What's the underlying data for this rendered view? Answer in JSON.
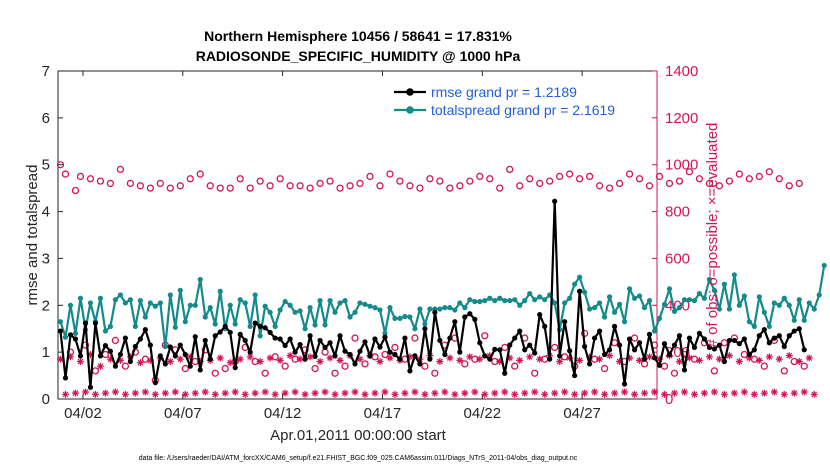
{
  "chart_data": {
    "type": "line",
    "title_line1": "Northern Hemisphere 10456 / 58641 = 17.831%",
    "title_line2": "RADIOSONDE_SPECIFIC_HUMIDITY @ 1000 hPa",
    "xlabel": "Apr.01,2011 00:00:00 start",
    "ylabel_left": "rmse and totalspread",
    "ylabel_right": "# of obs: o=possible; ×=evaluated",
    "footnote": "data file: /Users/raeder/DAI/ATM_forcXX/CAM6_setup/f.e21.FHIST_BGC.f09_025.CAM6assim.011/Diags_NTrS_2011-04/obs_diag_output.nc",
    "xlim": [
      0,
      30
    ],
    "ylim_left": [
      0,
      7
    ],
    "ylim_right": [
      0,
      1400
    ],
    "left_ticks": [
      "0",
      "1",
      "2",
      "3",
      "4",
      "5",
      "6",
      "7"
    ],
    "right_ticks": [
      "0",
      "200",
      "400",
      "600",
      "800",
      "1000",
      "1200",
      "1400"
    ],
    "x_ticks": [
      {
        "x": 1.25,
        "label": "04/02"
      },
      {
        "x": 6.25,
        "label": "04/07"
      },
      {
        "x": 11.25,
        "label": "04/12"
      },
      {
        "x": 16.25,
        "label": "04/17"
      },
      {
        "x": 21.25,
        "label": "04/22"
      },
      {
        "x": 26.25,
        "label": "04/27"
      }
    ],
    "legend": [
      {
        "name": "rmse",
        "label": "rmse grand pr = 1.2189",
        "color": "#000000"
      },
      {
        "name": "totalspread",
        "label": "totalspread grand pr = 2.1619",
        "color": "#148a8a"
      }
    ],
    "colors": {
      "rmse": "#000000",
      "spread": "#148a8a",
      "obs": "#d4145a",
      "legend_text": "#1f5fd6"
    },
    "x_start": 0.125,
    "x_step": 0.25,
    "series": [
      {
        "name": "rmse",
        "axis": "left",
        "values": [
          1.45,
          0.45,
          1.37,
          1.28,
          0.92,
          1.62,
          0.25,
          1.62,
          0.92,
          1.14,
          1.02,
          0.7,
          0.95,
          1.3,
          0.8,
          1.12,
          1.28,
          1.48,
          1.15,
          0.35,
          0.92,
          0.75,
          1.11,
          0.92,
          1.15,
          0.95,
          0.7,
          1.33,
          0.62,
          1.25,
          0.85,
          1.35,
          1.43,
          1.55,
          1.42,
          0.67,
          1.38,
          1.25,
          1.0,
          1.62,
          1.55,
          1.52,
          1.42,
          1.3,
          1.28,
          1.14,
          1.28,
          1.0,
          1.16,
          0.85,
          1.35,
          0.91,
          1.25,
          1.1,
          1.2,
          0.92,
          1.35,
          1.02,
          0.95,
          0.75,
          1.02,
          1.22,
          0.92,
          1.28,
          1.11,
          1.32,
          1.0,
          0.95,
          0.85,
          1.3,
          0.6,
          0.92,
          0.75,
          1.5,
          0.85,
          1.85,
          1.25,
          0.95,
          1.3,
          1.65,
          1.0,
          1.75,
          1.82,
          1.7,
          1.2,
          0.92,
          0.85,
          1.06,
          1.05,
          0.55,
          1.15,
          1.3,
          1.45,
          1.05,
          1.15,
          0.98,
          1.8,
          1.55,
          0.85,
          4.22,
          0.92,
          1.65,
          1.03,
          0.5,
          2.3,
          1.12,
          0.75,
          1.3,
          1.45,
          0.95,
          1.05,
          1.55,
          1.15,
          0.32,
          1.28,
          1.05,
          1.2,
          0.85,
          1.38,
          0.88,
          0.72,
          1.18,
          0.95,
          1.15,
          1.35,
          0.62,
          1.3,
          1.1,
          1.4,
          1.28,
          1.1,
          1.07,
          1.15,
          0.8,
          1.25,
          1.25,
          1.18,
          1.28,
          0.95,
          1.05,
          1.35,
          1.48,
          1.2,
          1.3,
          1.35,
          1.12,
          1.35,
          1.45,
          1.5,
          1.05
        ]
      },
      {
        "name": "totalspread",
        "axis": "left",
        "values": [
          1.65,
          1.32,
          2.0,
          1.4,
          2.15,
          1.48,
          2.05,
          1.65,
          2.15,
          1.45,
          1.55,
          2.12,
          2.22,
          2.05,
          2.12,
          1.55,
          2.1,
          1.75,
          2.05,
          1.98,
          2.05,
          1.12,
          2.22,
          1.53,
          2.32,
          1.65,
          2.0,
          2.0,
          2.55,
          1.75,
          1.95,
          1.6,
          2.3,
          1.5,
          2.0,
          1.6,
          2.12,
          2.05,
          1.55,
          2.22,
          1.35,
          1.98,
          1.85,
          1.55,
          1.9,
          2.08,
          2.0,
          1.85,
          1.88,
          1.5,
          1.95,
          1.58,
          2.1,
          1.58,
          2.1,
          1.85,
          2.05,
          2.1,
          1.75,
          1.85,
          2.05,
          2.02,
          1.98,
          1.95,
          1.9,
          1.4,
          1.95,
          1.72,
          1.72,
          1.76,
          1.75,
          1.5,
          1.92,
          1.6,
          1.92,
          1.92,
          1.92,
          1.95,
          1.95,
          1.9,
          2.05,
          1.95,
          2.12,
          2.08,
          2.08,
          2.1,
          2.15,
          2.1,
          2.15,
          2.1,
          2.1,
          2.12,
          2.0,
          2.1,
          2.25,
          2.12,
          2.18,
          2.12,
          2.22,
          2.05,
          1.48,
          2.05,
          2.15,
          2.45,
          2.6,
          2.28,
          1.92,
          1.95,
          2.05,
          1.75,
          2.18,
          1.85,
          2.02,
          1.65,
          2.35,
          2.15,
          2.2,
          1.95,
          2.1,
          1.45,
          1.72,
          2.02,
          2.35,
          1.87,
          1.95,
          2.12,
          2.12,
          2.1,
          2.25,
          2.15,
          2.55,
          2.32,
          1.92,
          2.45,
          1.92,
          2.65,
          2.0,
          2.2,
          1.65,
          1.55,
          2.18,
          1.85,
          1.55,
          2.05,
          2.0,
          2.15,
          2.0,
          1.68,
          2.12,
          1.68,
          2.05,
          1.92,
          2.22,
          2.85
        ]
      },
      {
        "name": "obs_possible",
        "axis": "right",
        "values": [
          1000,
          960,
          200,
          890,
          950,
          230,
          940,
          120,
          930,
          190,
          920,
          250,
          980,
          140,
          920,
          200,
          910,
          170,
          900,
          80,
          920,
          230,
          900,
          210,
          910,
          130,
          940,
          160,
          960,
          210,
          910,
          110,
          900,
          130,
          900,
          160,
          940,
          220,
          900,
          160,
          930,
          110,
          910,
          180,
          940,
          140,
          910,
          170,
          910,
          210,
          900,
          130,
          920,
          200,
          930,
          110,
          900,
          140,
          910,
          260,
          920,
          150,
          950,
          180,
          910,
          190,
          960,
          220,
          930,
          170,
          910,
          260,
          900,
          140,
          940,
          110,
          930,
          230,
          900,
          260,
          910,
          150,
          930,
          170,
          950,
          270,
          940,
          160,
          900,
          220,
          980,
          140,
          910,
          260,
          940,
          110,
          920,
          170,
          930,
          220,
          950,
          180,
          960,
          140,
          940,
          280,
          950,
          170,
          910,
          130,
          900,
          240,
          920,
          160,
          960,
          260,
          940,
          150,
          910,
          230,
          950,
          140,
          920,
          110,
          930,
          190,
          970,
          170,
          940,
          240,
          920,
          120,
          910,
          240,
          930,
          260,
          960,
          190,
          940,
          170,
          950,
          140,
          970,
          250,
          940,
          120,
          910,
          160,
          920,
          140
        ]
      },
      {
        "name": "obs_evaluated",
        "axis": "right",
        "values": [
          170,
          20,
          180,
          25,
          160,
          30,
          190,
          20,
          140,
          25,
          170,
          30,
          165,
          20,
          180,
          25,
          155,
          30,
          165,
          20,
          175,
          25,
          160,
          30,
          170,
          20,
          180,
          25,
          160,
          30,
          165,
          20,
          175,
          25,
          155,
          30,
          170,
          20,
          180,
          25,
          160,
          30,
          175,
          20,
          165,
          25,
          185,
          30,
          170,
          20,
          180,
          25,
          160,
          30,
          175,
          20,
          165,
          25,
          185,
          30,
          170,
          20,
          185,
          25,
          160,
          30,
          175,
          20,
          165,
          25,
          180,
          30,
          170,
          20,
          185,
          25,
          160,
          30,
          175,
          20,
          165,
          25,
          180,
          30,
          170,
          20,
          185,
          25,
          160,
          30,
          175,
          20,
          165,
          25,
          180,
          30,
          170,
          20,
          185,
          25,
          160,
          30,
          175,
          20,
          165,
          25,
          180,
          30,
          170,
          20,
          185,
          25,
          160,
          30,
          175,
          20,
          165,
          25,
          180,
          30,
          170,
          20,
          185,
          25,
          160,
          30,
          175,
          20,
          165,
          25,
          180,
          30,
          170,
          20,
          185,
          25,
          160,
          30,
          175,
          20,
          165,
          25,
          180,
          30,
          170,
          20,
          185,
          25,
          160,
          30,
          175,
          20
        ]
      }
    ]
  }
}
